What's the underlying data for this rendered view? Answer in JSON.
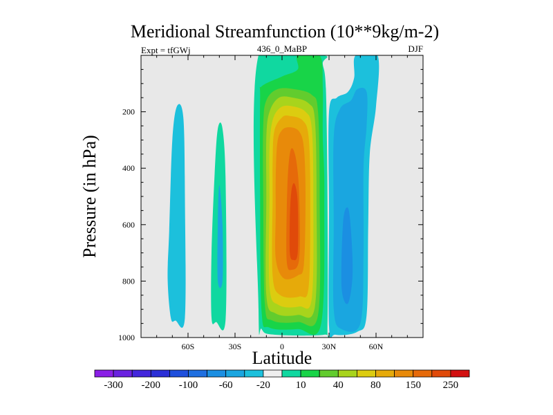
{
  "chart_data": {
    "type": "contour",
    "title": "Meridional Streamfunction (10**9kg/m-2)",
    "left_string": "Expt = tfGWj",
    "center_string": "436_0_MaBP",
    "right_string": "DJF",
    "xlabel": "Latitude",
    "ylabel": "Pressure (in hPa)",
    "xlim": [
      -90,
      90
    ],
    "ylim": [
      0,
      1000
    ],
    "y_inverted": true,
    "xticks": [
      {
        "value": -60,
        "label": "60S"
      },
      {
        "value": -30,
        "label": "30S"
      },
      {
        "value": 0,
        "label": "0"
      },
      {
        "value": 30,
        "label": "30N"
      },
      {
        "value": 60,
        "label": "60N"
      }
    ],
    "yticks": [
      {
        "value": 200,
        "label": "200"
      },
      {
        "value": 400,
        "label": "400"
      },
      {
        "value": 600,
        "label": "600"
      },
      {
        "value": 800,
        "label": "800"
      },
      {
        "value": 1000,
        "label": "1000"
      }
    ],
    "background_color": "#e8e8e8",
    "colorbar": {
      "levels": [
        -300,
        -250,
        -200,
        -150,
        -100,
        -80,
        -60,
        -40,
        -20,
        -10,
        10,
        20,
        40,
        60,
        80,
        100,
        150,
        200,
        250,
        300
      ],
      "labels": [
        "-300",
        "-200",
        "-100",
        "-60",
        "-20",
        "10",
        "40",
        "80",
        "150",
        "250"
      ],
      "colors": [
        "#8a1fe6",
        "#6a22e0",
        "#4326dc",
        "#2b2fd6",
        "#1e4fdc",
        "#1f6fe0",
        "#1b8fe2",
        "#1aa6e0",
        "#1cc0dc",
        "#eeeeee",
        "#10d8a0",
        "#18d448",
        "#62cc2e",
        "#a8d41c",
        "#dccc10",
        "#e6aa0a",
        "#e88a0a",
        "#e66a0a",
        "#e04a0a",
        "#d21010"
      ]
    },
    "contour_regions": [
      {
        "level": -10,
        "color": "#1cc0dc",
        "polygon": [
          [
            -71,
            930
          ],
          [
            -68,
            940
          ],
          [
            -62,
            930
          ],
          [
            -62,
            500
          ],
          [
            -63,
            220
          ],
          [
            -67,
            180
          ],
          [
            -70,
            300
          ],
          [
            -72,
            620
          ],
          [
            -73,
            790
          ]
        ]
      },
      {
        "level": 10,
        "color": "#10d8a0",
        "polygon": [
          [
            -45,
            930
          ],
          [
            -42,
            945
          ],
          [
            -36,
            935
          ],
          [
            -36,
            450
          ],
          [
            -38,
            260
          ],
          [
            -41,
            260
          ],
          [
            -43,
            420
          ],
          [
            -45,
            700
          ]
        ]
      },
      {
        "level": -20,
        "color": "#1aa6e0",
        "polygon": [
          [
            -41,
            800
          ],
          [
            -38,
            800
          ],
          [
            -38,
            600
          ],
          [
            -40,
            460
          ],
          [
            -41,
            600
          ]
        ]
      },
      {
        "level": 10,
        "color": "#10d8a0",
        "polygon": [
          [
            -15,
            0
          ],
          [
            -15,
            900
          ],
          [
            -13,
            970
          ],
          [
            -5,
            990
          ],
          [
            27,
            990
          ],
          [
            29,
            960
          ],
          [
            29,
            500
          ],
          [
            28,
            120
          ],
          [
            26,
            30
          ],
          [
            26,
            0
          ]
        ]
      },
      {
        "level": -10,
        "color": "#1cc0dc",
        "polygon": [
          [
            30,
            960
          ],
          [
            34,
            990
          ],
          [
            48,
            980
          ],
          [
            54,
            920
          ],
          [
            55,
            600
          ],
          [
            56,
            350
          ],
          [
            60,
            180
          ],
          [
            61,
            0
          ],
          [
            47,
            0
          ],
          [
            46,
            80
          ],
          [
            42,
            130
          ],
          [
            35,
            150
          ],
          [
            30,
            200
          ],
          [
            30,
            550
          ]
        ]
      },
      {
        "level": -20,
        "color": "#1aa6e0",
        "polygon": [
          [
            33,
            900
          ],
          [
            38,
            970
          ],
          [
            50,
            950
          ],
          [
            52,
            700
          ],
          [
            52,
            400
          ],
          [
            54,
            250
          ],
          [
            54,
            130
          ],
          [
            48,
            120
          ],
          [
            44,
            160
          ],
          [
            37,
            190
          ],
          [
            33,
            290
          ],
          [
            33,
            600
          ]
        ]
      },
      {
        "level": -40,
        "color": "#1b8fe2",
        "polygon": [
          [
            38,
            820
          ],
          [
            42,
            880
          ],
          [
            45,
            780
          ],
          [
            44,
            620
          ],
          [
            42,
            540
          ],
          [
            39,
            590
          ]
        ]
      },
      {
        "level": 20,
        "color": "#18d448",
        "polygon": [
          [
            -13,
            910
          ],
          [
            -8,
            965
          ],
          [
            10,
            970
          ],
          [
            25,
            950
          ],
          [
            27,
            500
          ],
          [
            26,
            280
          ],
          [
            26,
            110
          ],
          [
            24,
            0
          ],
          [
            10,
            0
          ],
          [
            10,
            50
          ],
          [
            0,
            75
          ],
          [
            -13,
            110
          ],
          [
            -14,
            150
          ],
          [
            -14,
            500
          ]
        ]
      },
      {
        "level": 40,
        "color": "#62cc2e",
        "polygon": [
          [
            -11,
            880
          ],
          [
            -6,
            940
          ],
          [
            10,
            945
          ],
          [
            23,
            920
          ],
          [
            24,
            500
          ],
          [
            23,
            200
          ],
          [
            19,
            140
          ],
          [
            8,
            120
          ],
          [
            -3,
            120
          ],
          [
            -10,
            160
          ],
          [
            -12,
            250
          ],
          [
            -12,
            500
          ]
        ]
      },
      {
        "level": 60,
        "color": "#a8d41c",
        "polygon": [
          [
            -10,
            850
          ],
          [
            -4,
            915
          ],
          [
            10,
            920
          ],
          [
            21,
            890
          ],
          [
            22,
            500
          ],
          [
            21,
            230
          ],
          [
            17,
            170
          ],
          [
            7,
            150
          ],
          [
            -2,
            150
          ],
          [
            -8,
            200
          ],
          [
            -10,
            290
          ],
          [
            -10,
            500
          ]
        ]
      },
      {
        "level": 80,
        "color": "#dccc10",
        "polygon": [
          [
            -8,
            820
          ],
          [
            -2,
            885
          ],
          [
            11,
            890
          ],
          [
            19,
            860
          ],
          [
            20,
            500
          ],
          [
            19,
            260
          ],
          [
            15,
            200
          ],
          [
            6,
            180
          ],
          [
            -1,
            185
          ],
          [
            -6,
            230
          ],
          [
            -8,
            330
          ],
          [
            -8,
            500
          ]
        ]
      },
      {
        "level": 100,
        "color": "#e6aa0a",
        "polygon": [
          [
            -6,
            780
          ],
          [
            -1,
            850
          ],
          [
            11,
            855
          ],
          [
            17,
            820
          ],
          [
            18,
            500
          ],
          [
            17,
            290
          ],
          [
            13,
            230
          ],
          [
            5,
            215
          ],
          [
            0,
            220
          ],
          [
            -5,
            270
          ],
          [
            -6,
            380
          ],
          [
            -6,
            500
          ]
        ]
      },
      {
        "level": 150,
        "color": "#e88a0a",
        "polygon": [
          [
            -4,
            720
          ],
          [
            1,
            790
          ],
          [
            10,
            780
          ],
          [
            14,
            740
          ],
          [
            15,
            500
          ],
          [
            14,
            330
          ],
          [
            11,
            270
          ],
          [
            5,
            255
          ],
          [
            0,
            265
          ],
          [
            -3,
            310
          ],
          [
            -4,
            430
          ],
          [
            -4,
            560
          ]
        ]
      },
      {
        "level": 200,
        "color": "#e66a0a",
        "polygon": [
          [
            3,
            730
          ],
          [
            6,
            760
          ],
          [
            11,
            720
          ],
          [
            11,
            500
          ],
          [
            9,
            370
          ],
          [
            6,
            330
          ],
          [
            4,
            400
          ],
          [
            3,
            550
          ]
        ]
      },
      {
        "level": 250,
        "color": "#e04a0a",
        "polygon": [
          [
            5,
            700
          ],
          [
            7,
            725
          ],
          [
            10,
            700
          ],
          [
            10,
            520
          ],
          [
            8,
            455
          ],
          [
            6,
            480
          ],
          [
            5,
            580
          ]
        ]
      }
    ]
  }
}
